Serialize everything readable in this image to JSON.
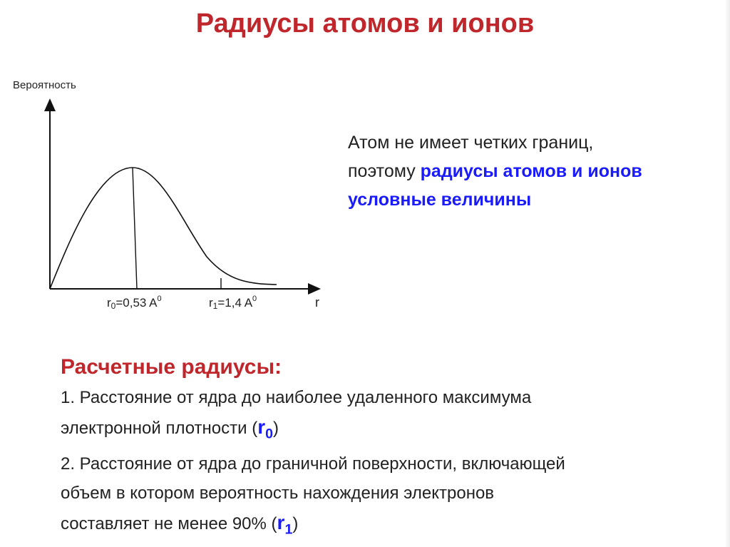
{
  "title": "Радиусы атомов и ионов",
  "chart": {
    "ylabel": "Вероятность",
    "xlabel": "r",
    "r0_label": "r",
    "r0_sub": "0",
    "r0_value": "=0,53 A",
    "r0_sup": "0",
    "r1_label": "r",
    "r1_sub": "1",
    "r1_value": "=1,4 A",
    "r1_sup": "0"
  },
  "intro": {
    "line1": "Атом не имеет четких границ,",
    "line2_plain": "поэтому ",
    "line2_bold": "радиусы атомов и ионов",
    "line3_bold": "условные величины"
  },
  "calc": {
    "heading": "Расчетные радиусы:",
    "item1_a": "1. Расстояние от ядра до наиболее удаленного максимума",
    "item1_b": "электронной плотности (",
    "item1_sym": "r",
    "item1_sub": "0",
    "item1_end": ")",
    "item2_a": "2. Расстояние от ядра до граничной поверхности, включающей",
    "item2_b": "объем в котором вероятность нахождения электронов",
    "item2_c": "составляет не менее 90% (",
    "item2_sym": "r",
    "item2_sub": "1",
    "item2_end": ")"
  },
  "colors": {
    "title": "#c0272d",
    "accent": "#1a1aff"
  }
}
